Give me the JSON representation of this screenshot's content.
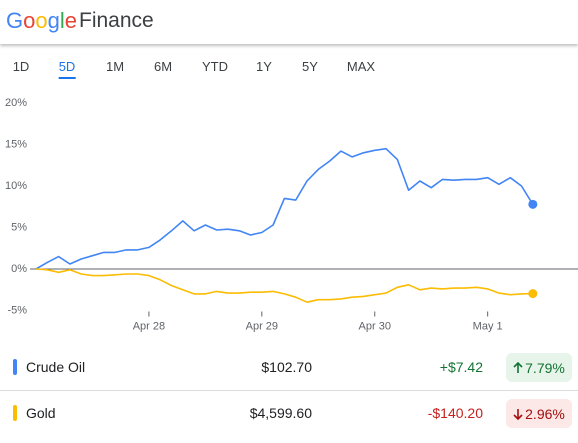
{
  "header": {
    "brand": "Google",
    "product": "Finance"
  },
  "tabs": [
    "1D",
    "5D",
    "1M",
    "6M",
    "YTD",
    "1Y",
    "5Y",
    "MAX"
  ],
  "active_tab": "5D",
  "chart_data": {
    "type": "line",
    "x": [
      0,
      0.1,
      0.2,
      0.3,
      0.4,
      0.5,
      0.6,
      0.7,
      0.8,
      0.9,
      1.0,
      1.1,
      1.2,
      1.3,
      1.4,
      1.5,
      1.6,
      1.7,
      1.8,
      1.9,
      2.0,
      2.1,
      2.2,
      2.3,
      2.4,
      2.5,
      2.6,
      2.7,
      2.8,
      2.9,
      3.0,
      3.1,
      3.2,
      3.3,
      3.4,
      3.5,
      3.6,
      3.7,
      3.8,
      3.9,
      4.0,
      4.1,
      4.2,
      4.3,
      4.4
    ],
    "series": [
      {
        "name": "Crude Oil",
        "color": "#4285f4",
        "values": [
          0,
          0.8,
          1.5,
          0.6,
          1.2,
          1.6,
          2.0,
          2.0,
          2.3,
          2.3,
          2.6,
          3.5,
          4.6,
          5.8,
          4.6,
          5.3,
          4.7,
          4.8,
          4.6,
          4.1,
          4.4,
          5.3,
          8.5,
          8.3,
          10.6,
          12.0,
          13.0,
          14.2,
          13.5,
          14.0,
          14.3,
          14.5,
          13.2,
          9.5,
          10.6,
          9.8,
          10.8,
          10.7,
          10.8,
          10.8,
          11.0,
          10.2,
          11.0,
          10.0,
          7.79
        ]
      },
      {
        "name": "Gold",
        "color": "#fbbc04",
        "values": [
          0,
          -0.1,
          -0.4,
          -0.1,
          -0.6,
          -0.8,
          -0.8,
          -0.7,
          -0.6,
          -0.6,
          -0.8,
          -1.3,
          -2.0,
          -2.5,
          -3.0,
          -3.0,
          -2.7,
          -2.9,
          -2.9,
          -2.8,
          -2.8,
          -2.7,
          -3.0,
          -3.4,
          -4.0,
          -3.7,
          -3.7,
          -3.6,
          -3.4,
          -3.3,
          -3.1,
          -2.9,
          -2.2,
          -1.9,
          -2.5,
          -2.3,
          -2.4,
          -2.3,
          -2.3,
          -2.2,
          -2.4,
          -2.9,
          -3.1,
          -3.0,
          -2.96
        ]
      }
    ],
    "xlim": [
      0,
      4.8
    ],
    "xticks": [
      {
        "value": 1,
        "label": "Apr 28"
      },
      {
        "value": 2,
        "label": "Apr 29"
      },
      {
        "value": 3,
        "label": "Apr 30"
      },
      {
        "value": 4,
        "label": "May 1"
      }
    ],
    "ylim": [
      -5,
      20
    ],
    "yticks": [
      {
        "value": 20,
        "label": "20%"
      },
      {
        "value": 15,
        "label": "15%"
      },
      {
        "value": 10,
        "label": "10%"
      },
      {
        "value": 5,
        "label": "5%"
      },
      {
        "value": 0,
        "label": "0%"
      },
      {
        "value": -5,
        "label": "-5%"
      }
    ],
    "grid": false
  },
  "quotes": [
    {
      "price": "$102.70",
      "change": "+$7.42",
      "percent": "7.79%",
      "direction": "up"
    },
    {
      "price": "$4,599.60",
      "change": "-$140.20",
      "percent": "2.96%",
      "direction": "down"
    }
  ]
}
